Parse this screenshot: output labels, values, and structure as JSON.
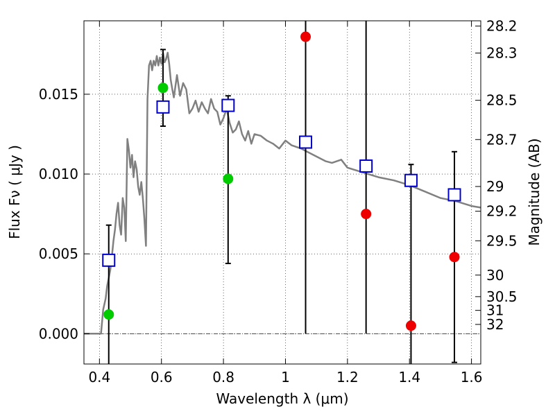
{
  "chart_data": {
    "type": "scatter",
    "xlabel": "Wavelength  λ (μm)",
    "ylabel": "Flux  Fν  ( μJy )",
    "y2label": "Magnitude (AB)",
    "xlim": [
      0.35,
      1.63
    ],
    "ylim": [
      -0.0019,
      0.0196
    ],
    "grid": true,
    "xticks": [
      0.4,
      0.6,
      0.8,
      1.0,
      1.2,
      1.4,
      1.6
    ],
    "xtick_labels": [
      "0.4",
      "0.6",
      "0.8",
      "1",
      "1.2",
      "1.4",
      "1.6"
    ],
    "yticks": [
      0.0,
      0.005,
      0.01,
      0.015
    ],
    "ytick_labels": [
      "0.000",
      "0.005",
      "0.010",
      "0.015"
    ],
    "y2ticks": [
      {
        "label": "28.2",
        "flux": 0.01927
      },
      {
        "label": "28.3",
        "flux": 0.01758
      },
      {
        "label": "28.5",
        "flux": 0.01462
      },
      {
        "label": "28.7",
        "flux": 0.01216
      },
      {
        "label": "29",
        "flux": 0.00922
      },
      {
        "label": "29.2",
        "flux": 0.00767
      },
      {
        "label": "29.5",
        "flux": 0.00582
      },
      {
        "label": "30",
        "flux": 0.00367
      },
      {
        "label": "30.5",
        "flux": 0.00232
      },
      {
        "label": "31",
        "flux": 0.00146
      },
      {
        "label": "32",
        "flux": 0.00058
      }
    ],
    "series": [
      {
        "kind": "model",
        "color": "#808080",
        "x": [
          0.35,
          0.37,
          0.39,
          0.405,
          0.412,
          0.42,
          0.425,
          0.43,
          0.435,
          0.44,
          0.445,
          0.45,
          0.455,
          0.46,
          0.465,
          0.47,
          0.475,
          0.48,
          0.485,
          0.49,
          0.495,
          0.5,
          0.505,
          0.51,
          0.515,
          0.52,
          0.525,
          0.53,
          0.535,
          0.54,
          0.545,
          0.55,
          0.555,
          0.56,
          0.565,
          0.57,
          0.575,
          0.58,
          0.585,
          0.59,
          0.595,
          0.6,
          0.605,
          0.61,
          0.615,
          0.62,
          0.625,
          0.63,
          0.635,
          0.64,
          0.65,
          0.66,
          0.67,
          0.68,
          0.69,
          0.7,
          0.71,
          0.72,
          0.73,
          0.74,
          0.75,
          0.76,
          0.77,
          0.78,
          0.79,
          0.8,
          0.81,
          0.82,
          0.83,
          0.84,
          0.85,
          0.86,
          0.87,
          0.88,
          0.89,
          0.9,
          0.92,
          0.94,
          0.96,
          0.98,
          1.0,
          1.02,
          1.05,
          1.08,
          1.1,
          1.13,
          1.15,
          1.18,
          1.2,
          1.25,
          1.3,
          1.35,
          1.4,
          1.45,
          1.5,
          1.55,
          1.6,
          1.63
        ],
        "y": [
          0.0,
          0.0,
          0.0,
          0.0,
          0.0015,
          0.0022,
          0.003,
          0.0035,
          0.004,
          0.0048,
          0.0058,
          0.0065,
          0.0075,
          0.0082,
          0.0068,
          0.0062,
          0.0085,
          0.0079,
          0.0058,
          0.0122,
          0.0115,
          0.0104,
          0.0112,
          0.0098,
          0.0108,
          0.0103,
          0.0092,
          0.0087,
          0.0095,
          0.0085,
          0.0072,
          0.0055,
          0.0147,
          0.0168,
          0.0171,
          0.0165,
          0.0171,
          0.0168,
          0.0174,
          0.0168,
          0.0173,
          0.0169,
          0.0176,
          0.017,
          0.0172,
          0.0176,
          0.0169,
          0.0159,
          0.0153,
          0.0148,
          0.0162,
          0.0149,
          0.0157,
          0.0153,
          0.0138,
          0.0141,
          0.0146,
          0.0139,
          0.0145,
          0.0141,
          0.0138,
          0.0147,
          0.0141,
          0.0139,
          0.0131,
          0.0135,
          0.0141,
          0.0132,
          0.0126,
          0.0128,
          0.0133,
          0.0125,
          0.0121,
          0.0127,
          0.0119,
          0.0125,
          0.0124,
          0.0121,
          0.0119,
          0.0116,
          0.0121,
          0.0118,
          0.0116,
          0.0113,
          0.0111,
          0.0108,
          0.0107,
          0.0109,
          0.0104,
          0.0101,
          0.0098,
          0.0096,
          0.0093,
          0.0089,
          0.0085,
          0.0083,
          0.008,
          0.0079
        ]
      },
      {
        "kind": "open-squares",
        "color": "#0000cc",
        "x": [
          0.43,
          0.605,
          0.815,
          1.065,
          1.26,
          1.405,
          1.545
        ],
        "y": [
          0.0046,
          0.0142,
          0.0143,
          0.012,
          0.0105,
          0.0096,
          0.0087
        ]
      },
      {
        "kind": "filled-circles",
        "color": "#00cc00",
        "x": [
          0.43,
          0.605,
          0.815
        ],
        "y": [
          0.0012,
          0.0154,
          0.0097
        ]
      },
      {
        "kind": "filled-circles",
        "color": "#ee0000",
        "x": [
          1.065,
          1.26,
          1.405,
          1.545
        ],
        "y": [
          0.0186,
          0.0075,
          0.0005,
          0.0048
        ]
      },
      {
        "kind": "errorbars",
        "color": "#000000",
        "x": [
          0.43,
          0.605,
          0.815,
          1.065,
          1.26,
          1.405,
          1.545
        ],
        "ylow": [
          -0.0019,
          0.013,
          0.0044,
          0.0,
          0.0,
          -0.0019,
          -0.0018
        ],
        "yhigh": [
          0.0068,
          0.0178,
          0.0149,
          0.0196,
          0.0196,
          0.0106,
          0.0114
        ],
        "low_cap": [
          false,
          true,
          true,
          false,
          false,
          false,
          true
        ],
        "high_cap": [
          true,
          true,
          true,
          false,
          false,
          true,
          true
        ]
      }
    ]
  }
}
